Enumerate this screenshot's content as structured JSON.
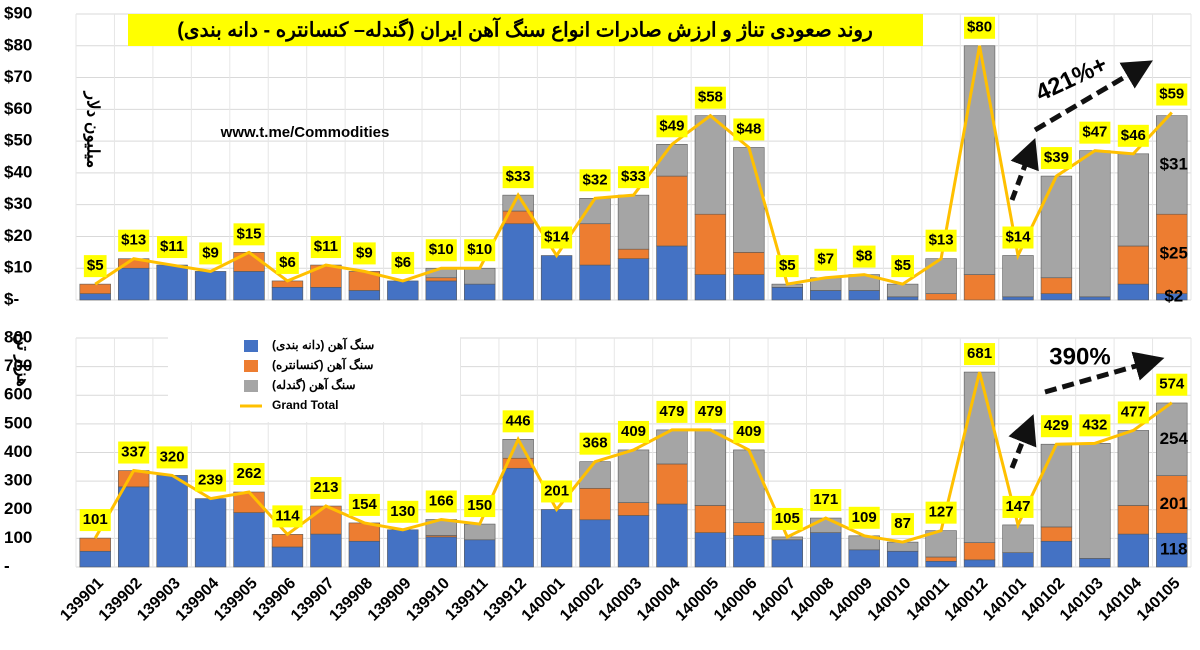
{
  "chart_data": [
    {
      "type": "bar",
      "stacked": true,
      "title": "روند صعودی تناژ و ارزش صادرات انواع سنگ آهن ایران (گندله– کنسانتره - دانه بندی)",
      "source": "www.t.me/Commodities",
      "y_label": "میلیون دلار",
      "annotation": "421%+",
      "ylim": [
        0,
        90
      ],
      "yticks": [
        {
          "value": 0,
          "label": "$-"
        },
        {
          "value": 10,
          "label": "$10"
        },
        {
          "value": 20,
          "label": "$20"
        },
        {
          "value": 30,
          "label": "$30"
        },
        {
          "value": 40,
          "label": "$40"
        },
        {
          "value": 50,
          "label": "$50"
        },
        {
          "value": 60,
          "label": "$60"
        },
        {
          "value": 70,
          "label": "$70"
        },
        {
          "value": 80,
          "label": "$80"
        },
        {
          "value": 90,
          "label": "$90"
        }
      ],
      "grid": true,
      "legend": false,
      "series": [
        {
          "color": "#4472c4",
          "values": [
            2,
            10,
            11,
            9,
            9,
            4,
            4,
            3,
            6,
            6,
            5,
            24,
            14,
            11,
            13,
            17,
            8,
            8,
            4,
            3,
            3,
            1,
            0,
            0,
            1,
            2,
            1,
            5,
            2
          ],
          "value_labels": [
            null,
            null,
            null,
            null,
            null,
            null,
            null,
            null,
            null,
            null,
            null,
            null,
            null,
            null,
            null,
            null,
            null,
            null,
            null,
            null,
            null,
            null,
            null,
            null,
            null,
            null,
            null,
            null,
            "$2"
          ]
        },
        {
          "color": "#ed7d31",
          "values": [
            3,
            3,
            0,
            0,
            6,
            2,
            7,
            6,
            0,
            1,
            0,
            4,
            0,
            13,
            3,
            22,
            19,
            7,
            0,
            0,
            0,
            0,
            2,
            8,
            0,
            5,
            0,
            12,
            25
          ],
          "value_labels": [
            null,
            null,
            null,
            null,
            null,
            null,
            null,
            null,
            null,
            null,
            null,
            null,
            null,
            null,
            null,
            null,
            null,
            null,
            null,
            null,
            null,
            null,
            null,
            null,
            null,
            null,
            null,
            null,
            "$25"
          ]
        },
        {
          "color": "#a5a5a5",
          "values": [
            0,
            0,
            0,
            0,
            0,
            0,
            0,
            0,
            0,
            3,
            5,
            5,
            0,
            8,
            17,
            10,
            31,
            33,
            1,
            4,
            5,
            4,
            11,
            72,
            13,
            32,
            46,
            29,
            31
          ],
          "value_labels": [
            null,
            null,
            null,
            null,
            null,
            null,
            null,
            null,
            null,
            null,
            null,
            null,
            null,
            null,
            null,
            null,
            null,
            null,
            null,
            null,
            null,
            null,
            null,
            null,
            null,
            null,
            null,
            null,
            "$31"
          ]
        },
        {
          "type": "line",
          "color": "#ffc000",
          "values": [
            5,
            13,
            11,
            9,
            15,
            6,
            11,
            9,
            6,
            10,
            10,
            33,
            14,
            32,
            33,
            49,
            58,
            48,
            5,
            7,
            8,
            5,
            13,
            80,
            14,
            39,
            47,
            46,
            59
          ],
          "value_labels": [
            "$5",
            "$13",
            "$11",
            "$9",
            "$15",
            "$6",
            "$11",
            "$9",
            "$6",
            "$10",
            "$10",
            "$33",
            "$14",
            "$32",
            "$33",
            "$49",
            "$58",
            "$48",
            "$5",
            "$7",
            "$8",
            "$5",
            "$13",
            "$80",
            "$14",
            "$39",
            "$47",
            "$46",
            "$59"
          ]
        }
      ]
    },
    {
      "type": "bar",
      "stacked": true,
      "y_label": "هزار تن",
      "annotation": "390%",
      "categories": [
        "139901",
        "139902",
        "139903",
        "139904",
        "139905",
        "139906",
        "139907",
        "139908",
        "139909",
        "139910",
        "139911",
        "139912",
        "140001",
        "140002",
        "140003",
        "140004",
        "140005",
        "140006",
        "140007",
        "140008",
        "140009",
        "140010",
        "140011",
        "140012",
        "140101",
        "140102",
        "140103",
        "140104",
        "140105"
      ],
      "ylim": [
        0,
        800
      ],
      "yticks": [
        {
          "value": 0,
          "label": "-"
        },
        100,
        200,
        300,
        400,
        500,
        600,
        700,
        800
      ],
      "grid": true,
      "legend": "top-left",
      "series": [
        {
          "name": "سنگ آهن (دانه بندی)",
          "color": "#4472c4",
          "values": [
            55,
            280,
            320,
            239,
            190,
            70,
            115,
            90,
            130,
            105,
            95,
            345,
            201,
            165,
            180,
            220,
            120,
            110,
            95,
            120,
            60,
            55,
            20,
            25,
            50,
            90,
            30,
            115,
            118
          ],
          "value_labels": [
            null,
            null,
            null,
            null,
            null,
            null,
            null,
            null,
            null,
            null,
            null,
            null,
            null,
            null,
            null,
            null,
            null,
            null,
            null,
            null,
            null,
            null,
            null,
            null,
            null,
            null,
            null,
            null,
            "118"
          ]
        },
        {
          "name": "سنگ آهن (کنسانتره)",
          "color": "#ed7d31",
          "values": [
            46,
            57,
            0,
            0,
            72,
            44,
            98,
            64,
            0,
            5,
            0,
            35,
            0,
            110,
            45,
            140,
            95,
            45,
            0,
            0,
            0,
            0,
            15,
            60,
            0,
            50,
            0,
            100,
            201
          ],
          "value_labels": [
            null,
            null,
            null,
            null,
            null,
            null,
            null,
            null,
            null,
            null,
            null,
            null,
            null,
            null,
            null,
            null,
            null,
            null,
            null,
            null,
            null,
            null,
            null,
            null,
            null,
            null,
            null,
            null,
            "201"
          ]
        },
        {
          "name": "سنگ آهن (گندله)",
          "color": "#a5a5a5",
          "values": [
            0,
            0,
            0,
            0,
            0,
            0,
            0,
            0,
            0,
            56,
            55,
            66,
            0,
            93,
            184,
            119,
            264,
            254,
            10,
            51,
            49,
            32,
            92,
            596,
            97,
            289,
            402,
            262,
            254
          ],
          "value_labels": [
            null,
            null,
            null,
            null,
            null,
            null,
            null,
            null,
            null,
            null,
            null,
            null,
            null,
            null,
            null,
            null,
            null,
            null,
            null,
            null,
            null,
            null,
            null,
            null,
            null,
            null,
            null,
            null,
            "254"
          ]
        },
        {
          "type": "line",
          "name": "Grand Total",
          "color": "#ffc000",
          "values": [
            101,
            337,
            320,
            239,
            262,
            114,
            213,
            154,
            130,
            166,
            150,
            446,
            201,
            368,
            409,
            479,
            479,
            409,
            105,
            171,
            109,
            87,
            127,
            681,
            147,
            429,
            432,
            477,
            574
          ]
        }
      ]
    }
  ]
}
